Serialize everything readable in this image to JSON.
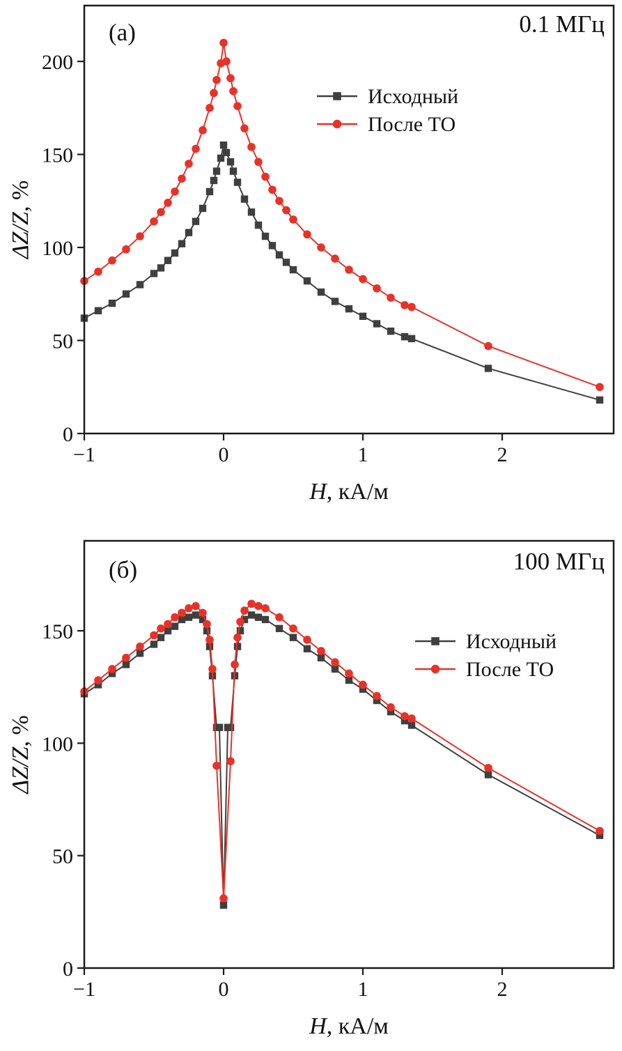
{
  "page": {
    "background": "#ffffff",
    "frame_color": "#1a1a1a"
  },
  "chart_data": [
    {
      "id": "a",
      "type": "line",
      "panel_label": "(а)",
      "annotation": "0.1 МГц",
      "xlabel_italic": "H",
      "xlabel_rest": ", кА/м",
      "ylabel_italic": "ΔZ/Z",
      "ylabel_rest": ", %",
      "xlim": [
        -1,
        2.8
      ],
      "ylim": [
        0,
        230
      ],
      "x_ticks": [
        -1,
        0,
        1,
        2
      ],
      "x_tick_labels": [
        "−1",
        "0",
        "1",
        "2"
      ],
      "y_ticks": [
        0,
        50,
        100,
        150,
        200
      ],
      "y_tick_labels": [
        "0",
        "50",
        "100",
        "150",
        "200"
      ],
      "grid": false,
      "legend_position": "upper center",
      "series": [
        {
          "name": "Исходный",
          "color": "#3f3f3f",
          "marker": "square",
          "points": [
            [
              -1,
              62
            ],
            [
              -0.9,
              66
            ],
            [
              -0.8,
              70
            ],
            [
              -0.7,
              75
            ],
            [
              -0.6,
              80
            ],
            [
              -0.5,
              86
            ],
            [
              -0.45,
              89
            ],
            [
              -0.4,
              93
            ],
            [
              -0.35,
              97
            ],
            [
              -0.3,
              102
            ],
            [
              -0.25,
              108
            ],
            [
              -0.2,
              114
            ],
            [
              -0.15,
              121
            ],
            [
              -0.1,
              130
            ],
            [
              -0.07,
              136
            ],
            [
              -0.05,
              141
            ],
            [
              -0.02,
              148
            ],
            [
              0,
              155
            ],
            [
              0.02,
              151
            ],
            [
              0.05,
              146
            ],
            [
              0.07,
              141
            ],
            [
              0.1,
              135
            ],
            [
              0.15,
              126
            ],
            [
              0.2,
              119
            ],
            [
              0.25,
              112
            ],
            [
              0.3,
              106
            ],
            [
              0.35,
              101
            ],
            [
              0.4,
              96
            ],
            [
              0.45,
              92
            ],
            [
              0.5,
              88
            ],
            [
              0.6,
              82
            ],
            [
              0.7,
              76
            ],
            [
              0.8,
              71
            ],
            [
              0.9,
              67
            ],
            [
              1,
              63
            ],
            [
              1.1,
              59
            ],
            [
              1.2,
              55
            ],
            [
              1.3,
              52
            ],
            [
              1.35,
              51
            ],
            [
              1.9,
              35
            ],
            [
              2.7,
              18
            ]
          ]
        },
        {
          "name": "После ТО",
          "color": "#e63329",
          "marker": "circle",
          "points": [
            [
              -1,
              82
            ],
            [
              -0.9,
              87
            ],
            [
              -0.8,
              93
            ],
            [
              -0.7,
              99
            ],
            [
              -0.6,
              106
            ],
            [
              -0.5,
              114
            ],
            [
              -0.45,
              119
            ],
            [
              -0.4,
              124
            ],
            [
              -0.35,
              130
            ],
            [
              -0.3,
              137
            ],
            [
              -0.25,
              145
            ],
            [
              -0.2,
              153
            ],
            [
              -0.15,
              163
            ],
            [
              -0.1,
              175
            ],
            [
              -0.07,
              183
            ],
            [
              -0.05,
              190
            ],
            [
              -0.02,
              199
            ],
            [
              0,
              210
            ],
            [
              0.02,
              200
            ],
            [
              0.05,
              191
            ],
            [
              0.07,
              184
            ],
            [
              0.1,
              176
            ],
            [
              0.15,
              164
            ],
            [
              0.2,
              154
            ],
            [
              0.25,
              146
            ],
            [
              0.3,
              138
            ],
            [
              0.35,
              131
            ],
            [
              0.4,
              125
            ],
            [
              0.45,
              120
            ],
            [
              0.5,
              115
            ],
            [
              0.6,
              107
            ],
            [
              0.7,
              100
            ],
            [
              0.8,
              94
            ],
            [
              0.9,
              88
            ],
            [
              1,
              83
            ],
            [
              1.1,
              78
            ],
            [
              1.2,
              73
            ],
            [
              1.3,
              69
            ],
            [
              1.35,
              68
            ],
            [
              1.9,
              47
            ],
            [
              2.7,
              25
            ]
          ]
        }
      ]
    },
    {
      "id": "b",
      "type": "line",
      "panel_label": "(б)",
      "annotation": "100 МГц",
      "xlabel_italic": "H",
      "xlabel_rest": ", кА/м",
      "ylabel_italic": "ΔZ/Z",
      "ylabel_rest": ", %",
      "xlim": [
        -1,
        2.8
      ],
      "ylim": [
        0,
        190
      ],
      "x_ticks": [
        -1,
        0,
        1,
        2
      ],
      "x_tick_labels": [
        "−1",
        "0",
        "1",
        "2"
      ],
      "y_ticks": [
        0,
        50,
        100,
        150
      ],
      "y_tick_labels": [
        "0",
        "50",
        "100",
        "150"
      ],
      "grid": false,
      "legend_position": "middle right",
      "series": [
        {
          "name": "Исходный",
          "color": "#3f3f3f",
          "marker": "square",
          "points": [
            [
              -1,
              122
            ],
            [
              -0.9,
              126
            ],
            [
              -0.8,
              131
            ],
            [
              -0.7,
              135
            ],
            [
              -0.6,
              140
            ],
            [
              -0.5,
              144
            ],
            [
              -0.45,
              147
            ],
            [
              -0.4,
              150
            ],
            [
              -0.35,
              152
            ],
            [
              -0.3,
              155
            ],
            [
              -0.25,
              156
            ],
            [
              -0.2,
              157
            ],
            [
              -0.15,
              155
            ],
            [
              -0.12,
              150
            ],
            [
              -0.1,
              143
            ],
            [
              -0.08,
              130
            ],
            [
              -0.05,
              107
            ],
            [
              -0.03,
              107
            ],
            [
              0,
              28
            ],
            [
              0.03,
              107
            ],
            [
              0.05,
              107
            ],
            [
              0.08,
              130
            ],
            [
              0.1,
              143
            ],
            [
              0.12,
              150
            ],
            [
              0.15,
              155
            ],
            [
              0.2,
              157
            ],
            [
              0.25,
              156
            ],
            [
              0.3,
              155
            ],
            [
              0.4,
              151
            ],
            [
              0.5,
              147
            ],
            [
              0.6,
              142
            ],
            [
              0.7,
              138
            ],
            [
              0.8,
              133
            ],
            [
              0.9,
              128
            ],
            [
              1,
              124
            ],
            [
              1.1,
              119
            ],
            [
              1.2,
              114
            ],
            [
              1.3,
              110
            ],
            [
              1.35,
              108
            ],
            [
              1.9,
              86
            ],
            [
              2.7,
              59
            ]
          ]
        },
        {
          "name": "После ТО",
          "color": "#e63329",
          "marker": "circle",
          "points": [
            [
              -1,
              123
            ],
            [
              -0.9,
              128
            ],
            [
              -0.8,
              133
            ],
            [
              -0.7,
              138
            ],
            [
              -0.6,
              143
            ],
            [
              -0.5,
              148
            ],
            [
              -0.45,
              151
            ],
            [
              -0.4,
              153
            ],
            [
              -0.35,
              156
            ],
            [
              -0.3,
              158
            ],
            [
              -0.25,
              160
            ],
            [
              -0.2,
              161
            ],
            [
              -0.15,
              158
            ],
            [
              -0.12,
              153
            ],
            [
              -0.1,
              146
            ],
            [
              -0.08,
              133
            ],
            [
              -0.05,
              90
            ],
            [
              0,
              31
            ],
            [
              0.05,
              92
            ],
            [
              0.08,
              135
            ],
            [
              0.1,
              147
            ],
            [
              0.12,
              154
            ],
            [
              0.15,
              159
            ],
            [
              0.2,
              162
            ],
            [
              0.25,
              161
            ],
            [
              0.3,
              160
            ],
            [
              0.4,
              156
            ],
            [
              0.5,
              151
            ],
            [
              0.6,
              146
            ],
            [
              0.7,
              141
            ],
            [
              0.8,
              136
            ],
            [
              0.9,
              131
            ],
            [
              1,
              126
            ],
            [
              1.1,
              121
            ],
            [
              1.2,
              116
            ],
            [
              1.3,
              112
            ],
            [
              1.35,
              111
            ],
            [
              1.9,
              89
            ],
            [
              2.7,
              61
            ]
          ]
        }
      ]
    }
  ]
}
